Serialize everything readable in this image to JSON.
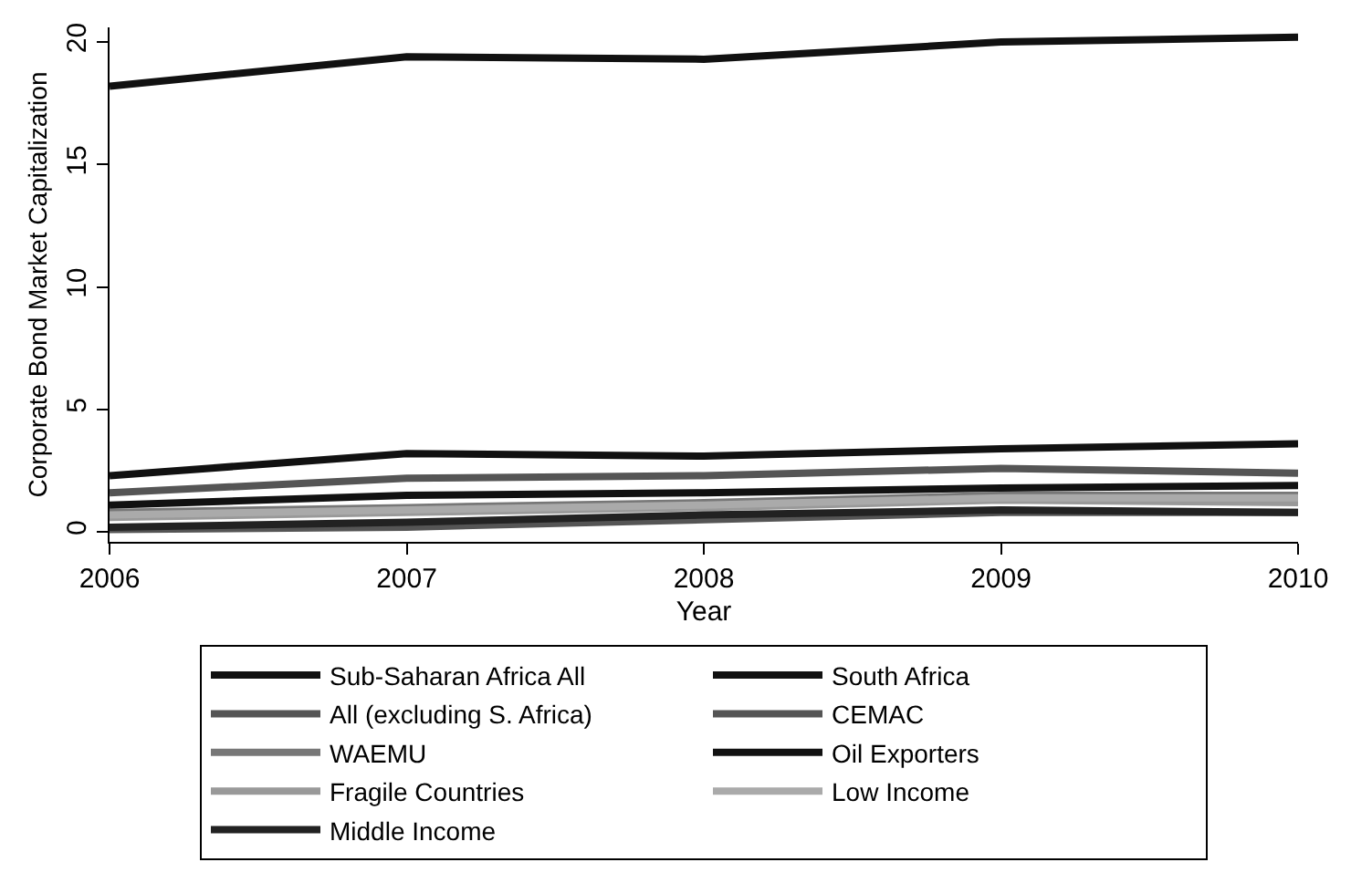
{
  "chart_data": {
    "type": "line",
    "xlabel": "Year",
    "ylabel": "Corporate Bond Market Capitalization",
    "x": [
      2006,
      2007,
      2008,
      2009,
      2010
    ],
    "xlim": [
      2006,
      2010
    ],
    "xticks": [
      2006,
      2007,
      2008,
      2009,
      2010
    ],
    "ylim": [
      -0.4,
      20.6
    ],
    "yticks": [
      0,
      5,
      10,
      15,
      20
    ],
    "legend": "bottom",
    "marker": "none",
    "line_style": "solid",
    "series": [
      {
        "name": "Sub-Saharan Africa All",
        "color": "#111111",
        "values": [
          2.3,
          3.2,
          3.1,
          3.4,
          3.6
        ]
      },
      {
        "name": "South Africa",
        "color": "#111111",
        "values": [
          18.2,
          19.4,
          19.3,
          20.0,
          20.2
        ]
      },
      {
        "name": "All (excluding S. Africa)",
        "color": "#555555",
        "values": [
          1.6,
          2.2,
          2.3,
          2.6,
          2.4
        ]
      },
      {
        "name": "CEMAC",
        "color": "#555555",
        "values": [
          0.1,
          0.2,
          0.5,
          0.8,
          0.8
        ]
      },
      {
        "name": "WAEMU",
        "color": "#777777",
        "values": [
          0.8,
          1.0,
          1.2,
          1.5,
          1.5
        ]
      },
      {
        "name": "Oil Exporters",
        "color": "#111111",
        "values": [
          1.1,
          1.5,
          1.6,
          1.8,
          1.9
        ]
      },
      {
        "name": "Fragile Countries",
        "color": "#999999",
        "values": [
          0.6,
          0.8,
          1.0,
          1.3,
          1.2
        ]
      },
      {
        "name": "Low Income",
        "color": "#aaaaaa",
        "values": [
          0.7,
          0.9,
          1.1,
          1.4,
          1.4
        ]
      },
      {
        "name": "Middle Income",
        "color": "#222222",
        "values": [
          0.2,
          0.4,
          0.7,
          0.9,
          0.8
        ]
      }
    ]
  }
}
